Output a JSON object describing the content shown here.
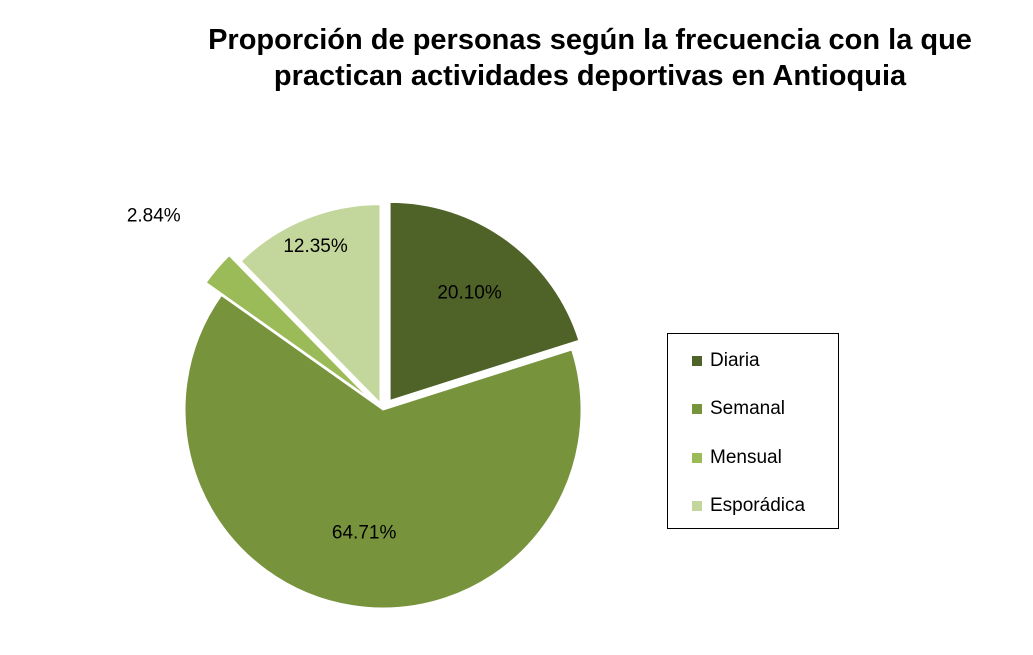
{
  "chart_data": {
    "type": "pie",
    "title": "Proporción de personas según la frecuencia con la que practican actividades deportivas en Antioquia",
    "title_lines": [
      "Proporción de personas según la frecuencia con la que",
      "practican actividades deportivas en Antioquia"
    ],
    "categories": [
      "Diaria",
      "Semanal",
      "Mensual",
      "Esporádica"
    ],
    "values": [
      20.1,
      64.71,
      2.84,
      12.35
    ],
    "labels": [
      "20.10%",
      "64.71%",
      "2.84%",
      "12.35%"
    ],
    "colors": [
      "#4f6228",
      "#77933c",
      "#9bbb59",
      "#c3d69b"
    ],
    "legend_position": "right",
    "exploded": true
  }
}
